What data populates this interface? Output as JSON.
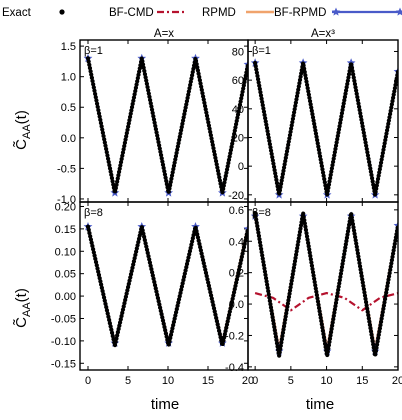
{
  "legend": [
    {
      "label": "Exact",
      "color": "#000000",
      "style": "dots"
    },
    {
      "label": "BF-CMD",
      "color": "#b5122e",
      "style": "dashdot"
    },
    {
      "label": "RPMD",
      "color": "#f0a36c",
      "style": "solid"
    },
    {
      "label": "BF-RPMD",
      "color": "#4a5bc9",
      "style": "line-stars"
    }
  ],
  "chart_data": [
    {
      "type": "line",
      "title": "A=x",
      "panel_label": "β=1",
      "xlabel": "",
      "ylabel": "C̃_AA(t)",
      "xlim": [
        -1,
        20
      ],
      "ylim": [
        -1.05,
        1.6
      ],
      "xticks": [
        "0",
        "5",
        "10",
        "15",
        "20"
      ],
      "yticks": [
        {
          "v": -1.0,
          "t": "-1.0"
        },
        {
          "v": -0.5,
          "t": "-0.5"
        },
        {
          "v": 0.0,
          "t": "0.0"
        },
        {
          "v": 0.5,
          "t": "0.5"
        },
        {
          "v": 1.0,
          "t": "1.0"
        },
        {
          "v": 1.5,
          "t": "1.5"
        }
      ],
      "series": [
        {
          "name": "Exact",
          "x": [
            0,
            3.36,
            6.72,
            10.08,
            13.44,
            16.8,
            20
          ],
          "y": [
            1.3,
            -0.9,
            1.3,
            -0.9,
            1.3,
            -0.9,
            1.2
          ]
        },
        {
          "name": "BF-CMD",
          "x": [
            0,
            3.36,
            6.72,
            10.08,
            13.44,
            16.8,
            20
          ],
          "y": [
            1.3,
            -0.9,
            1.3,
            -0.9,
            1.3,
            -0.9,
            1.2
          ]
        },
        {
          "name": "RPMD",
          "x": [
            0,
            3.36,
            6.72,
            10.08,
            13.44,
            16.8,
            20
          ],
          "y": [
            1.3,
            -0.9,
            1.3,
            -0.9,
            1.3,
            -0.9,
            1.2
          ]
        },
        {
          "name": "BF-RPMD",
          "x": [
            0,
            3.36,
            6.72,
            10.08,
            13.44,
            16.8,
            20
          ],
          "y": [
            1.3,
            -0.9,
            1.3,
            -0.9,
            1.3,
            -0.9,
            1.2
          ]
        }
      ]
    },
    {
      "type": "line",
      "title": "A=x³",
      "panel_label": "β=1",
      "xlabel": "",
      "ylabel": "",
      "xlim": [
        -1,
        20
      ],
      "ylim": [
        -25,
        88
      ],
      "xticks": [
        "0",
        "5",
        "10",
        "15",
        "20"
      ],
      "yticks": [
        {
          "v": -20,
          "t": "-20"
        },
        {
          "v": 0,
          "t": "0"
        },
        {
          "v": 20,
          "t": "20"
        },
        {
          "v": 40,
          "t": "40"
        },
        {
          "v": 60,
          "t": "60"
        },
        {
          "v": 80,
          "t": "80"
        }
      ],
      "series": [
        {
          "name": "Exact",
          "x": [
            0,
            3.36,
            6.72,
            10.08,
            13.44,
            16.8,
            20
          ],
          "y": [
            72,
            -20,
            72,
            -20,
            72,
            -20,
            66
          ]
        },
        {
          "name": "BF-CMD",
          "x": [
            0,
            3.36,
            6.72,
            10.08,
            13.44,
            16.8,
            20
          ],
          "y": [
            72,
            -20,
            72,
            -20,
            72,
            -20,
            66
          ]
        },
        {
          "name": "RPMD",
          "x": [
            0,
            3.36,
            6.72,
            10.08,
            13.44,
            16.8,
            20
          ],
          "y": [
            72,
            -20,
            72,
            -20,
            72,
            -20,
            66
          ]
        },
        {
          "name": "BF-RPMD",
          "x": [
            0,
            3.36,
            6.72,
            10.08,
            13.44,
            16.8,
            20
          ],
          "y": [
            72,
            -20,
            72,
            -20,
            72,
            -20,
            66
          ]
        }
      ]
    },
    {
      "type": "line",
      "title": "",
      "panel_label": "β=8",
      "xlabel": "time",
      "ylabel": "C̃_AA(t)",
      "xlim": [
        -1,
        20
      ],
      "ylim": [
        -0.165,
        0.21
      ],
      "xticks": [
        "0",
        "5",
        "10",
        "15",
        "20"
      ],
      "yticks": [
        {
          "v": -0.15,
          "t": "-0.15"
        },
        {
          "v": -0.1,
          "t": "-0.10"
        },
        {
          "v": -0.05,
          "t": "-0.05"
        },
        {
          "v": 0.0,
          "t": "0.00"
        },
        {
          "v": 0.05,
          "t": "0.05"
        },
        {
          "v": 0.1,
          "t": "0.10"
        },
        {
          "v": 0.15,
          "t": "0.15"
        },
        {
          "v": 0.2,
          "t": "0.20"
        }
      ],
      "series": [
        {
          "name": "Exact",
          "x": [
            0,
            3.36,
            6.72,
            10.08,
            13.44,
            16.8,
            20
          ],
          "y": [
            0.155,
            -0.11,
            0.155,
            -0.11,
            0.155,
            -0.11,
            0.15
          ]
        },
        {
          "name": "BF-CMD",
          "x": [
            0,
            3.36,
            6.72,
            10.08,
            13.44,
            16.8,
            20
          ],
          "y": [
            0.155,
            -0.11,
            0.155,
            -0.11,
            0.155,
            -0.11,
            0.15
          ]
        },
        {
          "name": "RPMD",
          "x": [
            0,
            3.36,
            6.72,
            10.08,
            13.44,
            16.8,
            20
          ],
          "y": [
            0.155,
            -0.105,
            0.155,
            -0.105,
            0.155,
            -0.105,
            0.155
          ]
        },
        {
          "name": "BF-RPMD",
          "x": [
            0,
            3.36,
            6.72,
            10.08,
            13.44,
            16.8,
            20
          ],
          "y": [
            0.155,
            -0.105,
            0.155,
            -0.105,
            0.155,
            -0.105,
            0.15
          ]
        }
      ]
    },
    {
      "type": "line",
      "title": "",
      "panel_label": "β=8",
      "xlabel": "time",
      "ylabel": "",
      "xlim": [
        -1,
        20
      ],
      "ylim": [
        -0.42,
        0.65
      ],
      "xticks": [
        "0",
        "5",
        "10",
        "15",
        "20"
      ],
      "yticks": [
        {
          "v": -0.4,
          "t": "-0.4"
        },
        {
          "v": -0.2,
          "t": "-0.2"
        },
        {
          "v": 0.0,
          "t": "0.0"
        },
        {
          "v": 0.2,
          "t": "0.2"
        },
        {
          "v": 0.4,
          "t": "0.4"
        },
        {
          "v": 0.6,
          "t": "0.6"
        }
      ],
      "series": [
        {
          "name": "Exact",
          "x": [
            0,
            3.36,
            6.72,
            10.08,
            13.44,
            16.8,
            20
          ],
          "y": [
            0.58,
            -0.33,
            0.58,
            -0.33,
            0.58,
            -0.33,
            0.5
          ]
        },
        {
          "name": "BF-CMD",
          "x": [
            0,
            2.5,
            5,
            7.5,
            10,
            12.5,
            15,
            17.5,
            20
          ],
          "y": [
            0.07,
            0.04,
            -0.04,
            0.04,
            0.07,
            0.04,
            -0.04,
            0.04,
            0.07
          ]
        },
        {
          "name": "RPMD",
          "x": [
            0,
            3.36,
            6.72,
            10.08,
            13.44,
            16.8,
            20
          ],
          "y": [
            0.56,
            -0.29,
            0.56,
            -0.29,
            0.56,
            -0.29,
            0.5
          ]
        },
        {
          "name": "BF-RPMD",
          "x": [
            0,
            3.36,
            6.72,
            10.08,
            13.44,
            16.8,
            20
          ],
          "y": [
            0.56,
            -0.3,
            0.56,
            -0.3,
            0.56,
            -0.3,
            0.5
          ]
        }
      ]
    }
  ]
}
